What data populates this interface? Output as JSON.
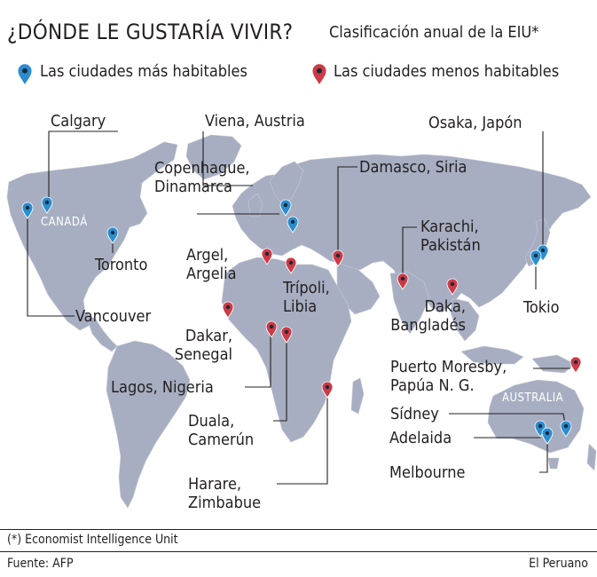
{
  "title": "¿DÓNDE LE GUSTARÍA VIVIR?",
  "subtitle": "Clasificación anual de la EIU*",
  "legend": {
    "most": "Las ciudades más habitables",
    "least": "Las ciudades menos habitables"
  },
  "colors": {
    "most_livable": "#2a8dd0",
    "least_livable": "#cc3a46",
    "land": "#a7aec1",
    "ocean": "#ffffff"
  },
  "regions": {
    "canada": "CANADÁ",
    "australia": "AUSTRALIA"
  },
  "cities": {
    "calgary": "Calgary",
    "vancouver": "Vancouver",
    "toronto": "Toronto",
    "vienna": "Viena, Austria",
    "copenhagen_1": "Copenhague,",
    "copenhagen_2": "Dinamarca",
    "damascus": "Damasco, Siria",
    "osaka": "Osaka, Japón",
    "tokyo": "Tokio",
    "algiers_1": "Argel,",
    "algiers_2": "Argelia",
    "tripoli_1": "Trípoli,",
    "tripoli_2": "Libia",
    "karachi_1": "Karachi,",
    "karachi_2": "Pakistán",
    "dhaka_1": "Daka,",
    "dhaka_2": "Bangladés",
    "dakar_1": "Dakar,",
    "dakar_2": "Senegal",
    "lagos": "Lagos, Nigeria",
    "douala_1": "Duala,",
    "douala_2": "Camerún",
    "harare_1": "Harare,",
    "harare_2": "Zimbabue",
    "port_moresby_1": "Puerto Moresby,",
    "port_moresby_2": "Papúa N. G.",
    "sydney": "Sídney",
    "adelaide": "Adelaida",
    "melbourne": "Melbourne"
  },
  "footnote": "(*) Economist Intelligence Unit",
  "source": "Fuente: AFP",
  "credit": "El Peruano"
}
